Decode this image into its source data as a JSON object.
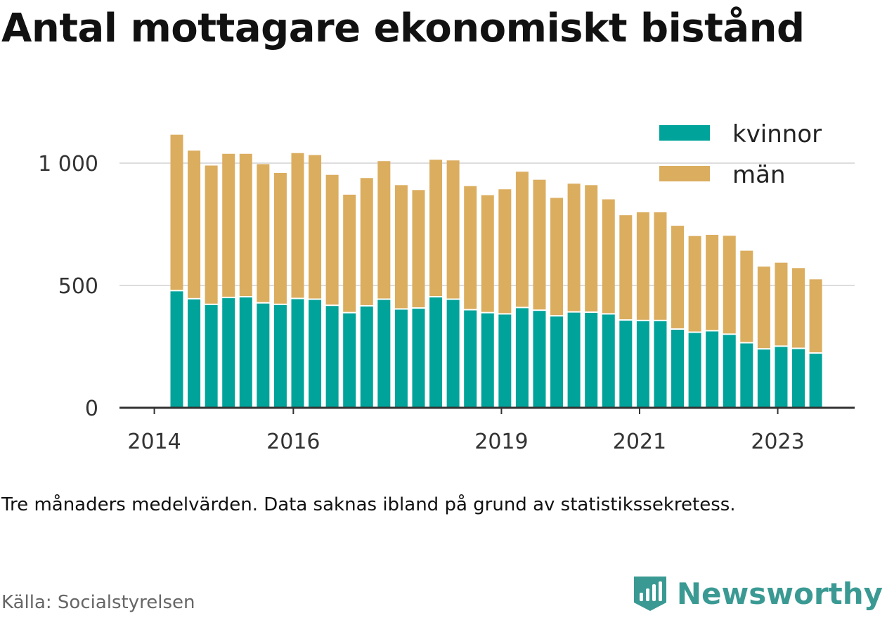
{
  "title": "Antal mottagare ekonomiskt bistånd",
  "note": "Tre månaders medelvärden. Data saknas ibland på grund av statistikssekretess.",
  "source": "Källa: Socialstyrelsen",
  "brand": {
    "name": "Newsworthy",
    "icon": "newsworthy-logo-icon",
    "color": "#3a9a93"
  },
  "chart_data": {
    "type": "bar",
    "stacked": true,
    "ylim": [
      0,
      1150
    ],
    "yticks": [
      {
        "value": 0,
        "label": "0"
      },
      {
        "value": 500,
        "label": "500"
      },
      {
        "value": 1000,
        "label": "1 000"
      }
    ],
    "xticks": [
      {
        "index": -1.3,
        "label": "2014"
      },
      {
        "index": 6.75,
        "label": "2016"
      },
      {
        "index": 18.8,
        "label": "2019"
      },
      {
        "index": 26.8,
        "label": "2021"
      },
      {
        "index": 34.8,
        "label": "2023"
      }
    ],
    "grid": true,
    "legend_position": "top-right",
    "series": [
      {
        "name": "kvinnor",
        "color": "#00a39a",
        "values": [
          476,
          443,
          420,
          448,
          451,
          426,
          420,
          444,
          441,
          416,
          386,
          414,
          441,
          401,
          405,
          451,
          441,
          398,
          386,
          381,
          407,
          396,
          373,
          389,
          388,
          381,
          356,
          354,
          354,
          319,
          306,
          312,
          298,
          263,
          238,
          249,
          240,
          221
        ]
      },
      {
        "name": "män",
        "color": "#dbad5f",
        "values": [
          640,
          608,
          570,
          590,
          587,
          570,
          540,
          597,
          592,
          536,
          485,
          525,
          567,
          509,
          485,
          563,
          570,
          508,
          483,
          512,
          558,
          536,
          485,
          527,
          522,
          471,
          431,
          445,
          445,
          425,
          396,
          395,
          405,
          379,
          339,
          344,
          331,
          304
        ]
      }
    ]
  }
}
